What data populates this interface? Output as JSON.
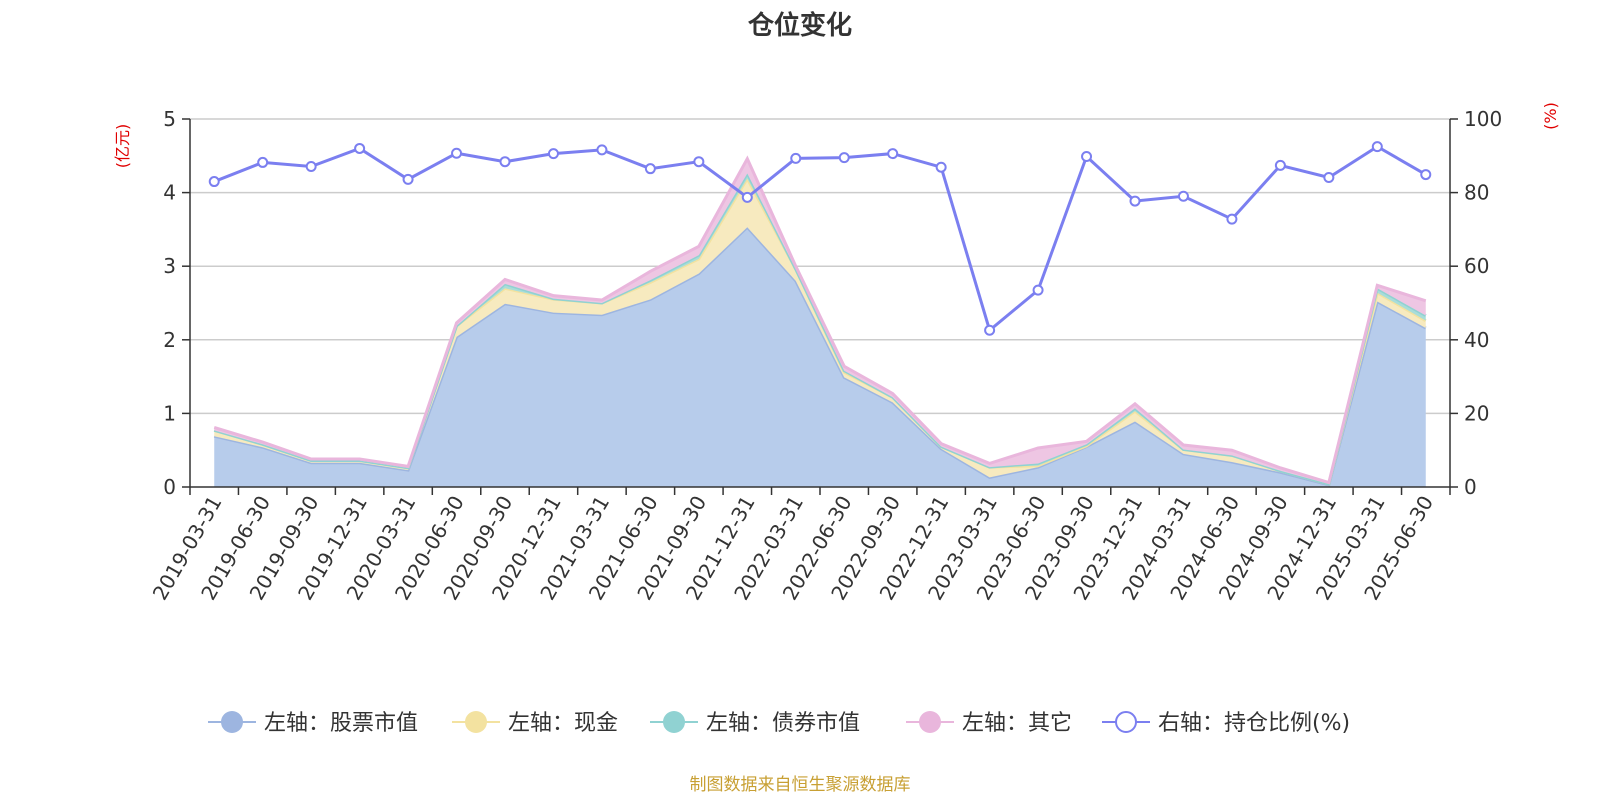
{
  "chart_data": {
    "type": "area",
    "title": "仓位变化",
    "left_axis_unit": "(亿元)",
    "right_axis_unit": "(%)",
    "categories": [
      "2019-03-31",
      "2019-06-30",
      "2019-09-30",
      "2019-12-31",
      "2020-03-31",
      "2020-06-30",
      "2020-09-30",
      "2020-12-31",
      "2021-03-31",
      "2021-06-30",
      "2021-09-30",
      "2021-12-31",
      "2022-03-31",
      "2022-06-30",
      "2022-09-30",
      "2022-12-31",
      "2023-03-31",
      "2023-06-30",
      "2023-09-30",
      "2023-12-31",
      "2024-03-31",
      "2024-06-30",
      "2024-09-30",
      "2024-12-31",
      "2025-03-31",
      "2025-06-30"
    ],
    "ylim_left": [
      0,
      5
    ],
    "ylim_right": [
      0,
      100
    ],
    "left_ticks": [
      "0",
      "1",
      "2",
      "3",
      "4",
      "5"
    ],
    "right_ticks": [
      "0",
      "20",
      "40",
      "60",
      "80",
      "100"
    ],
    "grid": true,
    "legend_position": "bottom",
    "series": [
      {
        "name": "左轴：股票市值",
        "axis": "left",
        "stack": true,
        "color": "#9db5e0",
        "fill": "#b7cceb",
        "values": [
          0.69,
          0.54,
          0.33,
          0.33,
          0.23,
          2.04,
          2.49,
          2.37,
          2.34,
          2.55,
          2.9,
          3.53,
          2.8,
          1.49,
          1.15,
          0.52,
          0.13,
          0.27,
          0.55,
          0.89,
          0.45,
          0.34,
          0.2,
          0.03,
          2.52,
          2.16
        ]
      },
      {
        "name": "左轴：现金",
        "axis": "left",
        "stack": true,
        "color": "#f3e2a0",
        "fill": "#f7eabf",
        "values": [
          0.08,
          0.04,
          0.03,
          0.03,
          0.03,
          0.15,
          0.21,
          0.18,
          0.16,
          0.23,
          0.2,
          0.66,
          0.16,
          0.07,
          0.07,
          0.03,
          0.14,
          0.02,
          0.01,
          0.14,
          0.06,
          0.09,
          0.02,
          0.01,
          0.12,
          0.1
        ]
      },
      {
        "name": "左轴：债券市值",
        "axis": "left",
        "stack": true,
        "color": "#90d2d2",
        "fill": "#a9ddd9",
        "values": [
          0.0,
          0.0,
          0.0,
          0.0,
          0.0,
          0.0,
          0.06,
          0.01,
          0.0,
          0.03,
          0.05,
          0.07,
          0.0,
          0.02,
          0.0,
          0.0,
          0.0,
          0.03,
          0.02,
          0.04,
          0.0,
          0.0,
          0.0,
          0.0,
          0.06,
          0.07
        ]
      },
      {
        "name": "左轴：其它",
        "axis": "left",
        "stack": true,
        "color": "#e9b6dc",
        "fill": "#eec6e3",
        "values": [
          0.04,
          0.03,
          0.02,
          0.02,
          0.02,
          0.04,
          0.06,
          0.04,
          0.04,
          0.12,
          0.12,
          0.2,
          0.04,
          0.06,
          0.05,
          0.04,
          0.05,
          0.21,
          0.04,
          0.06,
          0.06,
          0.07,
          0.04,
          0.02,
          0.04,
          0.2
        ]
      },
      {
        "name": "右轴：持仓比例(%)",
        "axis": "right",
        "type": "line",
        "color": "#7b7ff0",
        "values": [
          83.0,
          88.2,
          87.1,
          92.0,
          83.6,
          90.7,
          88.4,
          90.6,
          91.6,
          86.5,
          88.4,
          78.7,
          89.3,
          89.5,
          90.6,
          86.9,
          42.6,
          53.5,
          89.8,
          77.7,
          79.0,
          72.8,
          87.4,
          84.1,
          92.5,
          84.9
        ]
      }
    ],
    "source_text": "制图数据来自恒生聚源数据库"
  }
}
